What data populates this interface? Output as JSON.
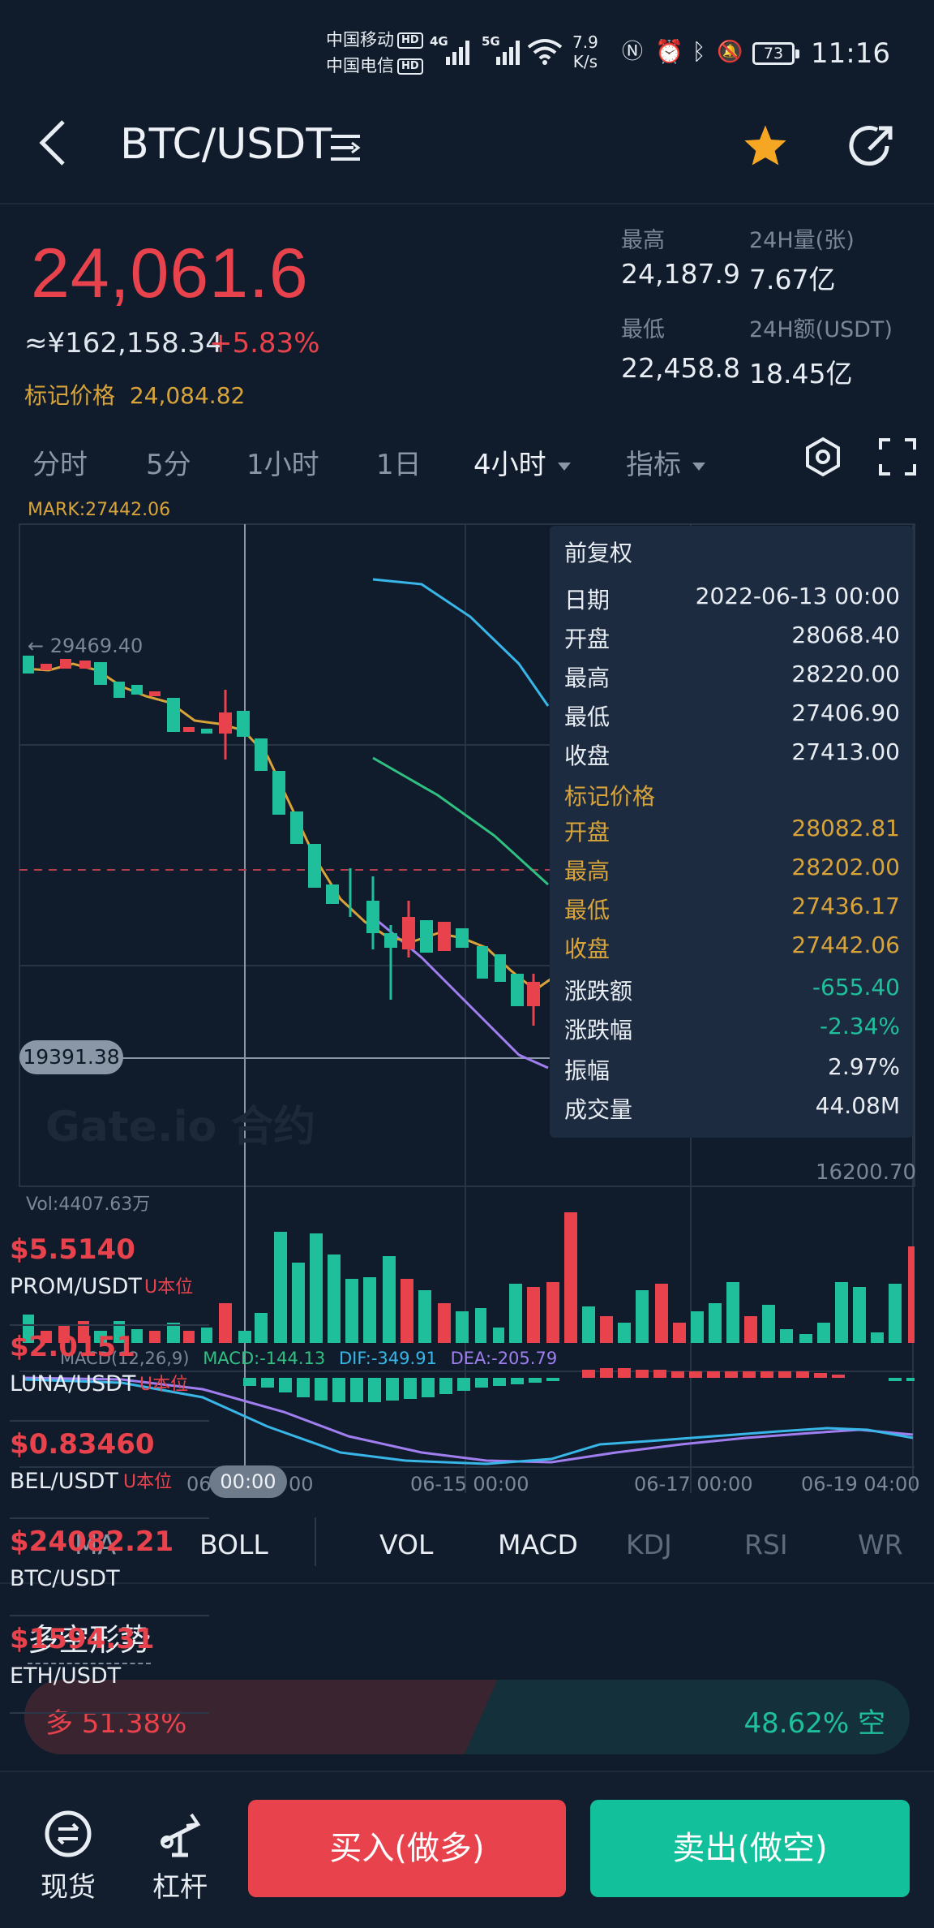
{
  "status_bar": {
    "carrier1": "中国移动",
    "carrier2": "中国电信",
    "hd": "HD",
    "net1": "4G",
    "net2": "5G",
    "speed_value": "7.9",
    "speed_unit": "K/s",
    "battery": "73",
    "time": "11:16"
  },
  "header": {
    "title": "BTC/USDT",
    "menu_glyph": "☰",
    "star_icon": "star-icon",
    "share_icon": "share-icon"
  },
  "price": {
    "last": "24,061.6",
    "cny": "≈¥162,158.34",
    "change_pct": "+5.83%",
    "mark_label": "标记价格",
    "mark_value": "24,084.82",
    "high_label": "最高",
    "high_value": "24,187.9",
    "low_label": "最低",
    "low_value": "22,458.8",
    "vol_label": "24H量(张)",
    "vol_value": "7.67亿",
    "amount_label": "24H额(USDT)",
    "amount_value": "18.45亿"
  },
  "timeframes": {
    "t1": "分时",
    "t2": "5分",
    "t3": "1小时",
    "t4": "1日",
    "t5": "4小时",
    "indicator": "指标"
  },
  "chart": {
    "mark_top": "MARK:27442.06",
    "high_annot": "← 29469.40",
    "price_tag": "19391.38",
    "low_annot": "16200.70",
    "watermark": "Gate.io 合约",
    "vol_label": "Vol:4407.63万",
    "macd_params": "MACD(12,26,9)",
    "macd_val": "MACD:-144.13",
    "dif_val": "DIF:-349.91",
    "dea_val": "DEA:-205.79",
    "date_tag": "00:00",
    "date_partial": "06",
    "date_partial2": "00",
    "date2": "06-15 00:00",
    "date3": "06-17 00:00",
    "date4": "06-19 04:00"
  },
  "tooltip": {
    "title": "前复权",
    "rows": [
      {
        "k": "日期",
        "v": "2022-06-13 00:00"
      },
      {
        "k": "开盘",
        "v": "28068.40"
      },
      {
        "k": "最高",
        "v": "28220.00"
      },
      {
        "k": "最低",
        "v": "27406.90"
      },
      {
        "k": "收盘",
        "v": "27413.00"
      }
    ],
    "mark_title": "标记价格",
    "mark_rows": [
      {
        "k": "开盘",
        "v": "28082.81"
      },
      {
        "k": "最高",
        "v": "28202.00"
      },
      {
        "k": "最低",
        "v": "27436.17"
      },
      {
        "k": "收盘",
        "v": "27442.06"
      }
    ],
    "tail_rows": [
      {
        "k": "涨跌额",
        "v": "-655.40"
      },
      {
        "k": "涨跌幅",
        "v": "-2.34%"
      },
      {
        "k": "振幅",
        "v": "2.97%"
      },
      {
        "k": "成交量",
        "v": "44.08M"
      }
    ]
  },
  "tickers": [
    {
      "price": "$5.5140",
      "name": "PROM/USDT",
      "unit": "U本位"
    },
    {
      "price": "$2.0151",
      "name": "LUNA/USDT",
      "unit": "U本位"
    },
    {
      "price": "$0.83460",
      "name": "BEL/USDT",
      "unit": "U本位"
    },
    {
      "price": "$24082.21",
      "name": "BTC/USDT",
      "unit": ""
    },
    {
      "price": "$1594.31",
      "name": "ETH/USDT",
      "unit": ""
    }
  ],
  "indicators": {
    "ma": "MA",
    "boll": "BOLL",
    "vol": "VOL",
    "macd": "MACD",
    "kdj": "KDJ",
    "rsi": "RSI",
    "wr": "WR"
  },
  "long_short": {
    "title": "多空形势",
    "long": "多 51.38%",
    "short": "48.62% 空",
    "long_pct": 51.38
  },
  "bottom_nav": {
    "spot": "现货",
    "leverage": "杠杆",
    "buy": "买入(做多)",
    "sell": "卖出(做空)"
  },
  "colors": {
    "up": "#e8424c",
    "down": "#1fbf9b",
    "gold": "#d8a43a",
    "background": "#101c2b"
  }
}
